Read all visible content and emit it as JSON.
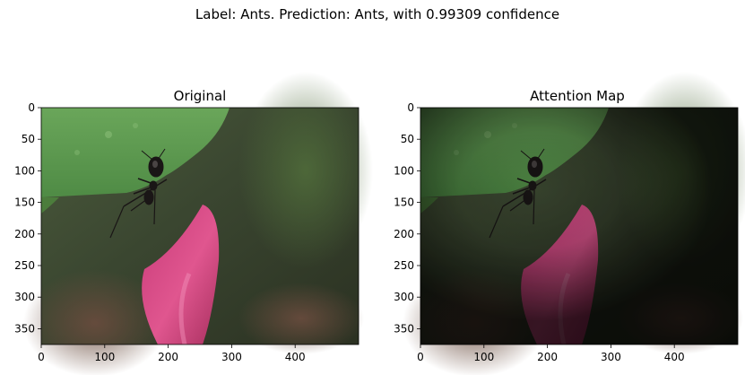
{
  "figure": {
    "suptitle": "Label: Ants. Prediction: Ants, with 0.99309 confidence"
  },
  "chart_data": [
    {
      "type": "image",
      "title": "Original",
      "xlabel": "",
      "ylabel": "",
      "xlim": [
        0,
        500
      ],
      "ylim": [
        375,
        0
      ],
      "xticks": [
        0,
        100,
        200,
        300,
        400
      ],
      "yticks": [
        0,
        50,
        100,
        150,
        200,
        250,
        300,
        350
      ],
      "grid": false,
      "content": "photo of a black ant on the edge of a green leaf above a pink petal, blurred background"
    },
    {
      "type": "image",
      "title": "Attention Map",
      "xlabel": "",
      "ylabel": "",
      "xlim": [
        0,
        500
      ],
      "ylim": [
        375,
        0
      ],
      "xticks": [
        0,
        100,
        200,
        300,
        400
      ],
      "yticks": [
        0,
        50,
        100,
        150,
        200,
        250,
        300,
        350
      ],
      "grid": false,
      "content": "same photo darkened except the attended region around the ant and leaf edge"
    }
  ],
  "colors": {
    "leaf": "#5f9a4f",
    "petal": "#d03c7c",
    "ant": "#1a1616",
    "background_dark": "#2c3326"
  }
}
